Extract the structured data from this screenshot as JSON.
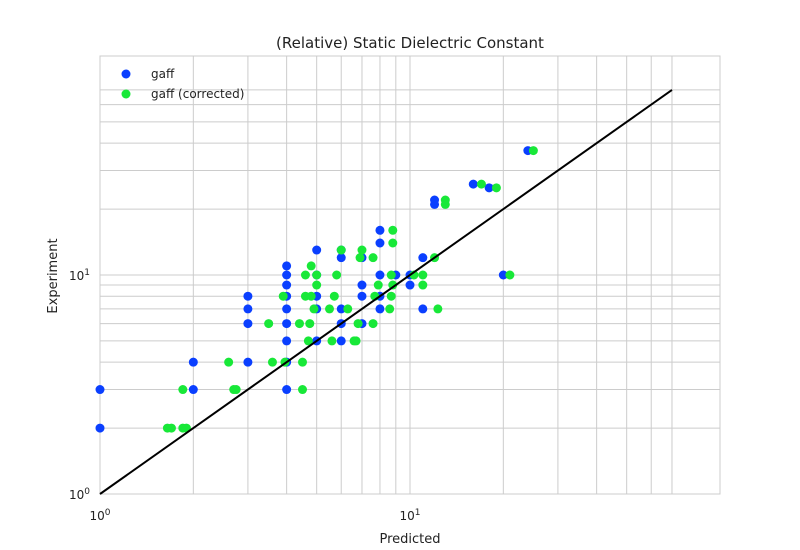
{
  "chart_data": {
    "type": "scatter",
    "title": "(Relative) Static Dielectric Constant",
    "xlabel": "Predicted",
    "ylabel": "Experiment",
    "xscale": "log",
    "yscale": "log",
    "xlim": [
      1,
      70
    ],
    "ylim": [
      1,
      70
    ],
    "grid": true,
    "legend_position": "upper-left",
    "x_tick_labels": [
      {
        "base": "10",
        "exp": "0",
        "value": 1
      },
      {
        "base": "10",
        "exp": "1",
        "value": 10
      }
    ],
    "y_tick_labels": [
      {
        "base": "10",
        "exp": "0",
        "value": 1
      },
      {
        "base": "10",
        "exp": "1",
        "value": 10
      }
    ],
    "identity_line": {
      "color": "#000000",
      "from": [
        1,
        1
      ],
      "to": [
        70,
        70
      ]
    },
    "series": [
      {
        "name": "gaff",
        "color": "#0a3fff",
        "points": [
          [
            1.0,
            2.0
          ],
          [
            1.0,
            3.0
          ],
          [
            2.0,
            3.0
          ],
          [
            2.0,
            4.0
          ],
          [
            3.0,
            4.0
          ],
          [
            3.0,
            6.0
          ],
          [
            3.0,
            7.0
          ],
          [
            3.0,
            8.0
          ],
          [
            4.0,
            3.0
          ],
          [
            4.0,
            4.0
          ],
          [
            4.0,
            5.0
          ],
          [
            4.0,
            6.0
          ],
          [
            4.0,
            7.0
          ],
          [
            4.0,
            8.0
          ],
          [
            4.0,
            9.0
          ],
          [
            4.0,
            10.0
          ],
          [
            4.0,
            11.0
          ],
          [
            5.0,
            5.0
          ],
          [
            5.0,
            7.0
          ],
          [
            5.0,
            8.0
          ],
          [
            5.0,
            10.0
          ],
          [
            5.0,
            13.0
          ],
          [
            6.0,
            5.0
          ],
          [
            6.0,
            6.0
          ],
          [
            6.0,
            7.0
          ],
          [
            6.0,
            12.0
          ],
          [
            6.0,
            13.0
          ],
          [
            7.0,
            6.0
          ],
          [
            7.0,
            8.0
          ],
          [
            7.0,
            9.0
          ],
          [
            7.0,
            12.0
          ],
          [
            8.0,
            7.0
          ],
          [
            8.0,
            8.0
          ],
          [
            8.0,
            10.0
          ],
          [
            8.0,
            14.0
          ],
          [
            8.0,
            16.0
          ],
          [
            9.0,
            10.0
          ],
          [
            10.0,
            9.0
          ],
          [
            10.0,
            10.0
          ],
          [
            11.0,
            7.0
          ],
          [
            11.0,
            12.0
          ],
          [
            12.0,
            21.0
          ],
          [
            12.0,
            22.0
          ],
          [
            16.0,
            26.0
          ],
          [
            18.0,
            25.0
          ],
          [
            20.0,
            10.0
          ],
          [
            24.0,
            37.0
          ]
        ]
      },
      {
        "name": "gaff (corrected)",
        "color": "#18e838",
        "points": [
          [
            1.65,
            2.0
          ],
          [
            1.7,
            2.0
          ],
          [
            1.85,
            2.0
          ],
          [
            1.9,
            2.0
          ],
          [
            1.85,
            3.0
          ],
          [
            2.6,
            4.0
          ],
          [
            2.7,
            3.0
          ],
          [
            2.75,
            3.0
          ],
          [
            3.5,
            6.0
          ],
          [
            3.6,
            4.0
          ],
          [
            3.9,
            8.0
          ],
          [
            3.95,
            4.0
          ],
          [
            4.4,
            6.0
          ],
          [
            4.5,
            3.0
          ],
          [
            4.5,
            4.0
          ],
          [
            4.6,
            8.0
          ],
          [
            4.6,
            10.0
          ],
          [
            4.7,
            5.0
          ],
          [
            4.75,
            6.0
          ],
          [
            4.8,
            8.0
          ],
          [
            4.8,
            11.0
          ],
          [
            4.9,
            7.0
          ],
          [
            5.0,
            9.0
          ],
          [
            5.0,
            10.0
          ],
          [
            5.5,
            7.0
          ],
          [
            5.6,
            5.0
          ],
          [
            5.7,
            8.0
          ],
          [
            5.8,
            10.0
          ],
          [
            6.0,
            13.0
          ],
          [
            6.3,
            7.0
          ],
          [
            6.6,
            5.0
          ],
          [
            6.7,
            5.0
          ],
          [
            6.8,
            6.0
          ],
          [
            6.9,
            12.0
          ],
          [
            7.0,
            13.0
          ],
          [
            7.6,
            6.0
          ],
          [
            7.7,
            8.0
          ],
          [
            7.6,
            12.0
          ],
          [
            7.9,
            9.0
          ],
          [
            8.6,
            7.0
          ],
          [
            8.7,
            8.0
          ],
          [
            8.8,
            9.0
          ],
          [
            8.7,
            10.0
          ],
          [
            8.8,
            14.0
          ],
          [
            8.8,
            16.0
          ],
          [
            10.3,
            10.0
          ],
          [
            11.0,
            9.0
          ],
          [
            11.0,
            10.0
          ],
          [
            12.0,
            12.0
          ],
          [
            12.3,
            7.0
          ],
          [
            13.0,
            21.0
          ],
          [
            13.0,
            22.0
          ],
          [
            17.0,
            26.0
          ],
          [
            19.0,
            25.0
          ],
          [
            21.0,
            10.0
          ],
          [
            25.0,
            37.0
          ]
        ]
      }
    ]
  }
}
